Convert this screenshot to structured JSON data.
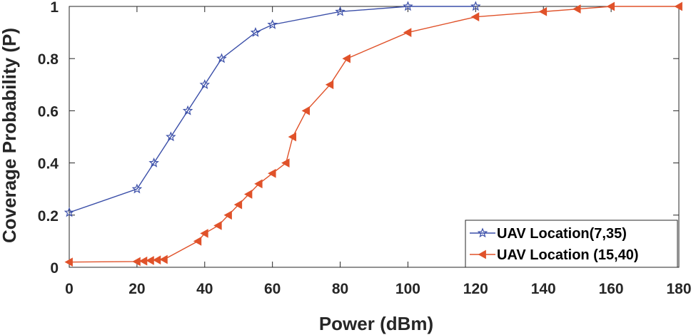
{
  "chart_data": {
    "type": "line",
    "title": "",
    "xlabel": "Power (dBm)",
    "ylabel": "Coverage Probability (P)",
    "xlim": [
      0,
      180
    ],
    "ylim": [
      0,
      1
    ],
    "xticks": [
      0,
      20,
      40,
      60,
      80,
      100,
      120,
      140,
      160,
      180
    ],
    "yticks": [
      0,
      0.2,
      0.4,
      0.6,
      0.8,
      1
    ],
    "ytick_labels": [
      "0",
      "0.2",
      "0.4",
      "0.6",
      "0.8",
      "1"
    ],
    "grid": false,
    "legend_position": "bottom-right",
    "series": [
      {
        "name": "UAV Location(7,35)",
        "color": "#3a4ea8",
        "marker": "star",
        "x": [
          0,
          20,
          25,
          30,
          35,
          40,
          45,
          55,
          60,
          80,
          100,
          120
        ],
        "y": [
          0.21,
          0.3,
          0.4,
          0.5,
          0.6,
          0.7,
          0.8,
          0.9,
          0.93,
          0.98,
          1.0,
          1.0
        ]
      },
      {
        "name": "UAV Location (15,40)",
        "color": "#e0522a",
        "marker": "triangle-left",
        "x": [
          0,
          20,
          22,
          24,
          26,
          28,
          38,
          40,
          44,
          47,
          50,
          53,
          56,
          60,
          64,
          66,
          70,
          77,
          82,
          100,
          120,
          140,
          150,
          160,
          180
        ],
        "y": [
          0.02,
          0.022,
          0.024,
          0.026,
          0.028,
          0.03,
          0.1,
          0.13,
          0.16,
          0.2,
          0.24,
          0.28,
          0.32,
          0.36,
          0.4,
          0.5,
          0.6,
          0.7,
          0.8,
          0.9,
          0.96,
          0.98,
          0.99,
          1.0,
          1.0
        ]
      }
    ]
  }
}
